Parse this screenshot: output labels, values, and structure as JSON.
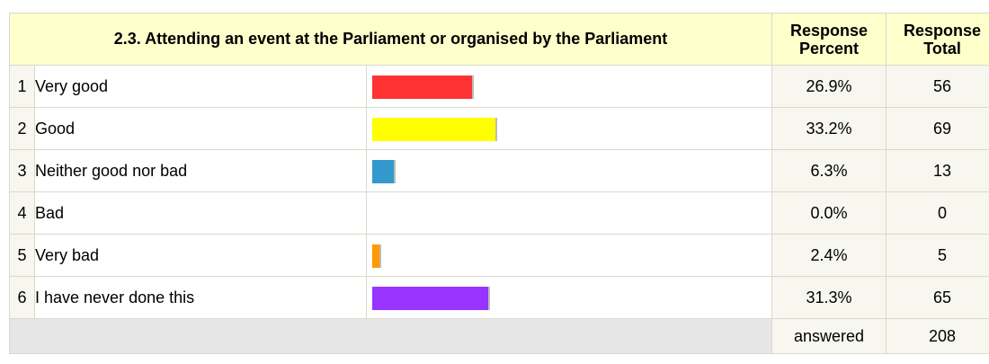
{
  "header": {
    "title": "2.3. Attending an event at the Parliament or organised by the Parliament",
    "percent_line1": "Response",
    "percent_line2": "Percent",
    "total_line1": "Response",
    "total_line2": "Total"
  },
  "chart_data": {
    "type": "bar",
    "categories": [
      "Very good",
      "Good",
      "Neither good nor bad",
      "Bad",
      "Very bad",
      "I have never done this"
    ],
    "values": [
      26.9,
      33.2,
      6.3,
      0.0,
      2.4,
      31.3
    ],
    "colors": [
      "#ff3333",
      "#ffff00",
      "#3399cc",
      "#cccccc",
      "#ff9900",
      "#9933ff"
    ],
    "xlim": [
      0,
      100
    ]
  },
  "rows": [
    {
      "num": "1",
      "label": "Very good",
      "percent": "26.9%",
      "total": "56"
    },
    {
      "num": "2",
      "label": "Good",
      "percent": "33.2%",
      "total": "69"
    },
    {
      "num": "3",
      "label": "Neither good nor bad",
      "percent": "6.3%",
      "total": "13"
    },
    {
      "num": "4",
      "label": "Bad",
      "percent": "0.0%",
      "total": "0"
    },
    {
      "num": "5",
      "label": "Very bad",
      "percent": "2.4%",
      "total": "5"
    },
    {
      "num": "6",
      "label": "I have never done this",
      "percent": "31.3%",
      "total": "65"
    }
  ],
  "footer": {
    "answered_label": "answered",
    "answered_value": "208"
  }
}
